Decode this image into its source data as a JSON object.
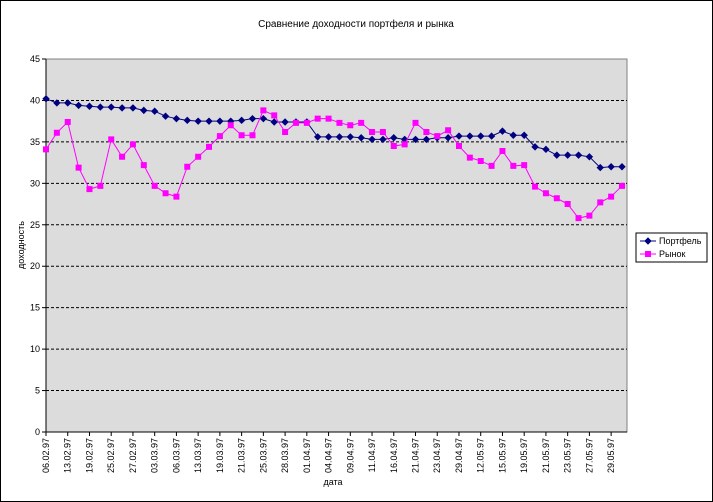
{
  "chart_data": {
    "type": "line",
    "title": "Сравнение доходности портфеля и рынка",
    "x_label": "дата",
    "y_label": "доходность",
    "categories": [
      "06.02.97",
      null,
      "13.02.97",
      null,
      "19.02.97",
      null,
      "25.02.97",
      null,
      "27.02.97",
      null,
      "03.03.97",
      null,
      "06.03.97",
      null,
      "13.03.97",
      null,
      "19.03.97",
      null,
      "21.03.97",
      null,
      "25.03.97",
      null,
      "28.03.97",
      null,
      "01.04.97",
      null,
      "04.04.97",
      null,
      "09.04.97",
      null,
      "11.04.97",
      null,
      "16.04.97",
      null,
      "21.04.97",
      null,
      "23.04.97",
      null,
      "29.04.97",
      null,
      "12.05.97",
      null,
      "15.05.97",
      null,
      "19.05.97",
      null,
      "21.05.97",
      null,
      "23.05.97",
      null,
      "27.05.97",
      null,
      "29.05.97",
      null
    ],
    "series": [
      {
        "name": "Портфель",
        "color": "#000080",
        "marker": "diamond",
        "values": [
          40.2,
          39.7,
          39.7,
          39.4,
          39.3,
          39.2,
          39.2,
          39.1,
          39.1,
          38.8,
          38.7,
          38.1,
          37.8,
          37.6,
          37.5,
          37.5,
          37.5,
          37.5,
          37.6,
          37.8,
          37.8,
          37.4,
          37.4,
          37.4,
          37.4,
          35.6,
          35.6,
          35.6,
          35.6,
          35.5,
          35.3,
          35.3,
          35.5,
          35.3,
          35.3,
          35.3,
          35.5,
          35.5,
          35.7,
          35.7,
          35.7,
          35.7,
          36.3,
          35.8,
          35.8,
          34.4,
          34.1,
          33.4,
          33.4,
          33.4,
          33.2,
          31.9,
          32.0,
          32.0
        ]
      },
      {
        "name": "Рынок",
        "color": "#ff00ff",
        "marker": "square",
        "values": [
          34.1,
          36.1,
          37.4,
          31.9,
          29.3,
          29.7,
          35.3,
          33.2,
          34.7,
          32.2,
          29.7,
          28.8,
          28.4,
          32.0,
          33.2,
          34.4,
          35.7,
          37.0,
          35.8,
          35.8,
          38.8,
          38.2,
          36.2,
          37.3,
          37.3,
          37.8,
          37.8,
          37.3,
          37.0,
          37.3,
          36.2,
          36.2,
          34.5,
          34.7,
          37.3,
          36.2,
          35.7,
          36.4,
          34.5,
          33.1,
          32.7,
          32.1,
          33.9,
          32.1,
          32.2,
          29.6,
          28.8,
          28.2,
          27.5,
          25.8,
          26.1,
          27.7,
          28.4,
          29.7
        ]
      }
    ],
    "ylim": [
      0,
      45
    ],
    "yticks": [
      0,
      5,
      10,
      15,
      20,
      25,
      30,
      35,
      40,
      45
    ],
    "grid": true,
    "legend": "right"
  }
}
